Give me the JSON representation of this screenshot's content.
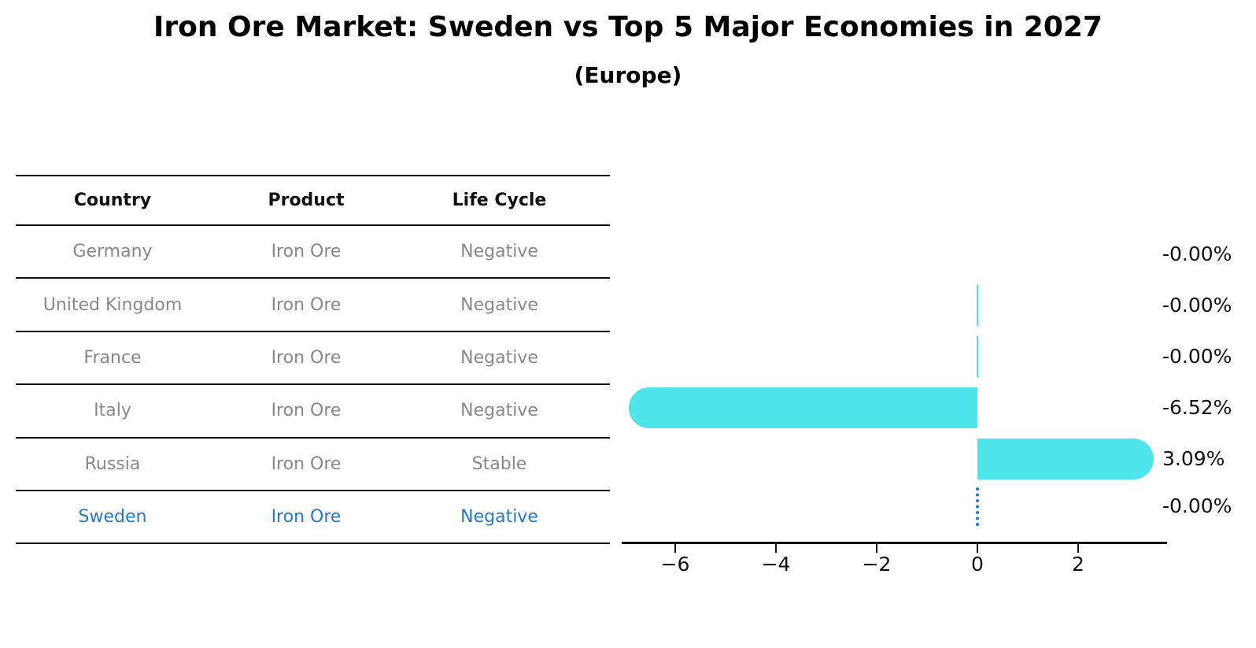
{
  "table": {
    "headers": [
      "Country",
      "Product",
      "Life Cycle"
    ],
    "rows": [
      {
        "country": "Germany",
        "product": "Iron Ore",
        "life_cycle": "Negative",
        "highlighted": false
      },
      {
        "country": "United Kingdom",
        "product": "Iron Ore",
        "life_cycle": "Negative",
        "highlighted": false
      },
      {
        "country": "France",
        "product": "Iron Ore",
        "life_cycle": "Negative",
        "highlighted": false
      },
      {
        "country": "Italy",
        "product": "Iron Ore",
        "life_cycle": "Negative",
        "highlighted": false
      },
      {
        "country": "Russia",
        "product": "Iron Ore",
        "life_cycle": "Stable",
        "highlighted": false
      },
      {
        "country": "Sweden",
        "product": "Iron Ore",
        "life_cycle": "Negative",
        "highlighted": true
      }
    ],
    "text_color": "#888888",
    "highlight_text_color": "#2878C8"
  },
  "chart_data": {
    "type": "bar",
    "orientation": "horizontal",
    "title": "Iron Ore Market: Sweden vs Top 5 Major Economies in 2027",
    "subtitle": "(Europe)",
    "categories": [
      "Germany",
      "United Kingdom",
      "France",
      "Italy",
      "Russia",
      "Sweden"
    ],
    "values": [
      -0.0,
      -0.0,
      -0.0,
      -6.52,
      3.09,
      -0.0
    ],
    "value_labels": [
      "-0.00%",
      "-0.00%",
      "-0.00%",
      "-6.52%",
      "3.09%",
      "-0.00%"
    ],
    "x_ticks": [
      -6,
      -4,
      -2,
      0,
      2
    ],
    "x_tick_labels": [
      "−6",
      "−4",
      "−2",
      "0",
      "2"
    ],
    "xlim": [
      -7.06,
      3.77
    ],
    "grid": false,
    "legend": false,
    "bar_color": "#4DE4EA",
    "highlight_category": "Sweden",
    "highlight_color": "#2878C8",
    "bar_styles": [
      "hidden",
      "sliver",
      "sliver",
      "capsule",
      "capsule",
      "dashed"
    ]
  }
}
